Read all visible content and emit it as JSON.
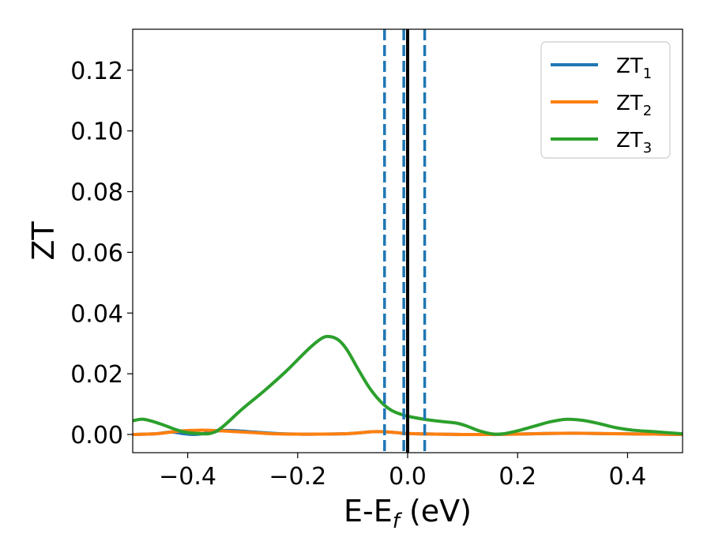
{
  "chart_data": {
    "type": "line",
    "title": "",
    "xlabel": "E-E",
    "xlabel_sub": "f",
    "xlabel_unit": " (eV)",
    "ylabel": "ZT",
    "xlim": [
      -0.5,
      0.5
    ],
    "ylim": [
      -0.006,
      0.1335
    ],
    "xticks": [
      -0.4,
      -0.2,
      0.0,
      0.2,
      0.4
    ],
    "xtick_labels": [
      "−0.4",
      "−0.2",
      "0.0",
      "0.2",
      "0.4"
    ],
    "yticks": [
      0.0,
      0.02,
      0.04,
      0.06,
      0.08,
      0.1,
      0.12
    ],
    "ytick_labels": [
      "0.00",
      "0.02",
      "0.04",
      "0.06",
      "0.08",
      "0.10",
      "0.12"
    ],
    "grid": false,
    "legend_position": "top-right",
    "vertical_lines": [
      {
        "x": 0.0,
        "style": "solid",
        "color": "#000000"
      },
      {
        "x": -0.042,
        "style": "dashed",
        "color": "#1f77b4"
      },
      {
        "x": -0.007,
        "style": "dashed",
        "color": "#1f77b4"
      },
      {
        "x": 0.031,
        "style": "dashed",
        "color": "#1f77b4"
      }
    ],
    "series": [
      {
        "name": "ZT",
        "subscript": "1",
        "color": "#1f77b4",
        "x": [
          -0.5,
          -0.46,
          -0.43,
          -0.41,
          -0.39,
          -0.37,
          -0.35,
          -0.32,
          -0.28,
          -0.24,
          -0.2,
          -0.16,
          -0.12,
          -0.09,
          -0.065,
          -0.045,
          -0.02,
          0.0,
          0.05,
          0.1,
          0.15,
          0.2,
          0.25,
          0.3,
          0.35,
          0.4,
          0.45,
          0.5
        ],
        "y": [
          0.0,
          0.0002,
          0.0008,
          0.0003,
          0.0,
          0.0003,
          0.0011,
          0.0013,
          0.0008,
          0.0003,
          0.0001,
          0.0001,
          0.0002,
          0.0005,
          0.0009,
          0.0009,
          0.0006,
          0.0003,
          0.0001,
          0.0,
          0.0,
          0.0001,
          0.0003,
          0.0004,
          0.0003,
          0.0002,
          0.0001,
          0.0
        ]
      },
      {
        "name": "ZT",
        "subscript": "2",
        "color": "#ff7f0e",
        "x": [
          -0.5,
          -0.46,
          -0.43,
          -0.41,
          -0.38,
          -0.35,
          -0.32,
          -0.28,
          -0.24,
          -0.2,
          -0.16,
          -0.12,
          -0.09,
          -0.065,
          -0.045,
          -0.02,
          0.0,
          0.05,
          0.1,
          0.15,
          0.2,
          0.25,
          0.3,
          0.35,
          0.4,
          0.45,
          0.5
        ],
        "y": [
          0.0,
          0.0002,
          0.0008,
          0.0012,
          0.0014,
          0.0013,
          0.001,
          0.0006,
          0.0002,
          0.0001,
          0.0001,
          0.0002,
          0.0005,
          0.0009,
          0.0009,
          0.0006,
          0.0003,
          0.0001,
          0.0,
          0.0,
          0.0001,
          0.0003,
          0.0004,
          0.0003,
          0.0002,
          0.0001,
          0.0
        ]
      },
      {
        "name": "ZT",
        "subscript": "3",
        "color": "#2ca02c",
        "x": [
          -0.5,
          -0.48,
          -0.45,
          -0.42,
          -0.4,
          -0.38,
          -0.36,
          -0.34,
          -0.3,
          -0.26,
          -0.22,
          -0.18,
          -0.155,
          -0.14,
          -0.125,
          -0.11,
          -0.09,
          -0.07,
          -0.05,
          -0.03,
          -0.01,
          0.0,
          0.03,
          0.06,
          0.09,
          0.11,
          0.13,
          0.15,
          0.165,
          0.18,
          0.2,
          0.23,
          0.26,
          0.29,
          0.32,
          0.35,
          0.38,
          0.41,
          0.45,
          0.5
        ],
        "y": [
          0.0045,
          0.005,
          0.0035,
          0.0015,
          0.0006,
          0.0003,
          0.0003,
          0.002,
          0.0085,
          0.0145,
          0.021,
          0.0282,
          0.0318,
          0.0322,
          0.031,
          0.0278,
          0.0215,
          0.0155,
          0.011,
          0.008,
          0.0065,
          0.006,
          0.005,
          0.0043,
          0.0037,
          0.0026,
          0.0012,
          0.0003,
          0.0001,
          0.0004,
          0.0012,
          0.0027,
          0.0042,
          0.005,
          0.0046,
          0.0035,
          0.0022,
          0.0014,
          0.0009,
          0.0002
        ]
      }
    ]
  }
}
